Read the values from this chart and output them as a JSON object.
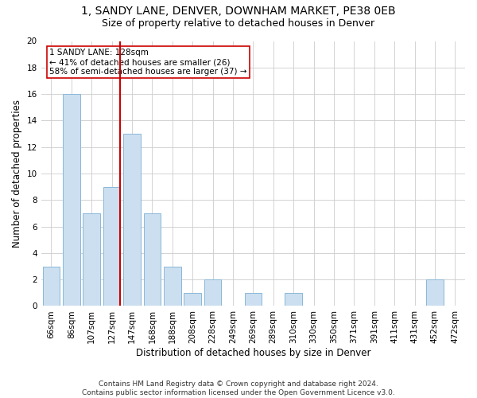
{
  "title1": "1, SANDY LANE, DENVER, DOWNHAM MARKET, PE38 0EB",
  "title2": "Size of property relative to detached houses in Denver",
  "xlabel": "Distribution of detached houses by size in Denver",
  "ylabel": "Number of detached properties",
  "categories": [
    "66sqm",
    "86sqm",
    "107sqm",
    "127sqm",
    "147sqm",
    "168sqm",
    "188sqm",
    "208sqm",
    "228sqm",
    "249sqm",
    "269sqm",
    "289sqm",
    "310sqm",
    "330sqm",
    "350sqm",
    "371sqm",
    "391sqm",
    "411sqm",
    "431sqm",
    "452sqm",
    "472sqm"
  ],
  "values": [
    3,
    16,
    7,
    9,
    13,
    7,
    3,
    1,
    2,
    0,
    1,
    0,
    1,
    0,
    0,
    0,
    0,
    0,
    0,
    2,
    0
  ],
  "bar_color": "#ccdff0",
  "bar_edge_color": "#8ab8d8",
  "grid_color": "#cccccc",
  "vline_x_index": 3,
  "vline_color": "#cc0000",
  "annotation_text": "1 SANDY LANE: 128sqm\n← 41% of detached houses are smaller (26)\n58% of semi-detached houses are larger (37) →",
  "annotation_box_color": "#ffffff",
  "annotation_box_edge": "#cc0000",
  "ylim": [
    0,
    20
  ],
  "yticks": [
    0,
    2,
    4,
    6,
    8,
    10,
    12,
    14,
    16,
    18,
    20
  ],
  "footer": "Contains HM Land Registry data © Crown copyright and database right 2024.\nContains public sector information licensed under the Open Government Licence v3.0.",
  "title1_fontsize": 10,
  "title2_fontsize": 9,
  "xlabel_fontsize": 8.5,
  "ylabel_fontsize": 8.5,
  "tick_fontsize": 7.5,
  "footer_fontsize": 6.5,
  "annot_fontsize": 7.5
}
